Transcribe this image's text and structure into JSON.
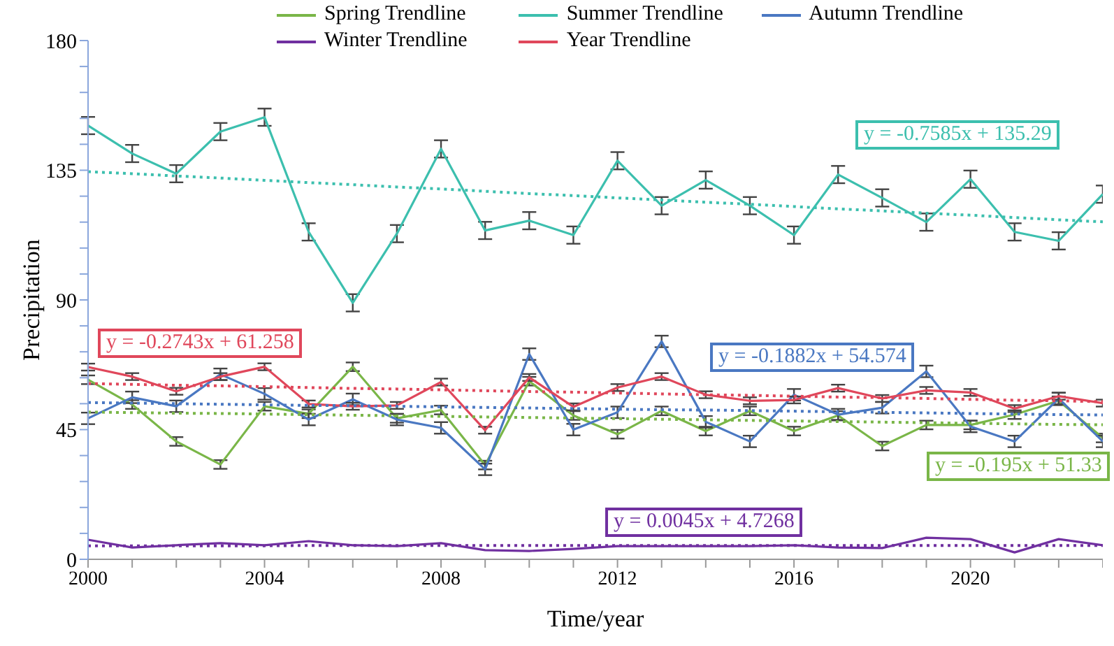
{
  "chart_data": {
    "type": "line",
    "xlabel": "Time/year",
    "ylabel": "Precipitation",
    "categories": [
      "2000",
      null,
      null,
      null,
      "2004",
      null,
      null,
      null,
      "2008",
      null,
      null,
      null,
      "2012",
      null,
      null,
      null,
      "2016",
      null,
      null,
      null,
      "2020",
      null,
      null,
      null
    ],
    "ylim": [
      0,
      180
    ],
    "yticks": [
      0,
      {
        "value": 9,
        "label": null
      },
      {
        "value": 18,
        "label": null
      },
      {
        "value": 27,
        "label": null
      },
      {
        "value": 36,
        "label": null
      },
      45,
      {
        "value": 54,
        "label": null
      },
      {
        "value": 63,
        "label": null
      },
      {
        "value": 72,
        "label": null
      },
      {
        "value": 81,
        "label": null
      },
      90,
      {
        "value": 99,
        "label": null
      },
      {
        "value": 108,
        "label": null
      },
      {
        "value": 117,
        "label": null
      },
      {
        "value": 126,
        "label": null
      },
      135,
      {
        "value": 144,
        "label": null
      },
      {
        "value": 153,
        "label": null
      },
      {
        "value": 162,
        "label": null
      },
      {
        "value": 171,
        "label": null
      },
      180
    ],
    "grid": false,
    "legend": "top",
    "marker": "none",
    "series": [
      {
        "color": "#7ab648",
        "line_style": "solid",
        "values": [
          62.3,
          53.7,
          40.9,
          32.9,
          53.1,
          50.5,
          66.8,
          48.9,
          51.8,
          32.7,
          61.8,
          49.9,
          43.4,
          51.5,
          44.5,
          51.5,
          44.5,
          49.9,
          39.3,
          46.6,
          46.6,
          50.2,
          55.0,
          42.1
        ],
        "errors": [
          1.5,
          1.5,
          1.5,
          1.5,
          1.5,
          1.5,
          1.5,
          1.5,
          1.5,
          1.5,
          1.5,
          1.5,
          1.5,
          1.5,
          1.5,
          1.5,
          1.5,
          1.5,
          1.5,
          1.5,
          1.5,
          1.5,
          1.5,
          1.5
        ]
      },
      {
        "color": "#3cbfae",
        "line_style": "solid",
        "values": [
          150.5,
          140.8,
          133.8,
          148.4,
          153.4,
          113.6,
          89.0,
          113.0,
          142.4,
          114.1,
          117.5,
          112.5,
          138.3,
          122.7,
          131.6,
          122.7,
          112.5,
          133.5,
          125.4,
          117.0,
          131.9,
          113.6,
          110.5,
          126.7
        ],
        "errors": [
          3,
          3,
          3,
          3,
          3,
          3,
          3,
          3,
          3,
          3,
          3,
          3,
          3,
          3,
          3,
          3,
          3,
          3,
          3,
          3,
          3,
          3,
          3,
          3
        ]
      },
      {
        "color": "#4a78c2",
        "line_style": "solid",
        "values": [
          48.9,
          56.2,
          53.1,
          64.2,
          57.4,
          48.5,
          55.5,
          48.5,
          45.6,
          31.2,
          71.2,
          45.0,
          51.0,
          75.6,
          47.7,
          40.9,
          57.1,
          50.2,
          52.6,
          65.2,
          46.1,
          40.9,
          55.8,
          40.9
        ],
        "errors": [
          2,
          2,
          2,
          2,
          2,
          2,
          2,
          2,
          2,
          2,
          2,
          2,
          2,
          2,
          2,
          2,
          2,
          2,
          2,
          2,
          2,
          2,
          2,
          2
        ]
      },
      {
        "color": "#7030a0",
        "line_style": "solid",
        "values": [
          6.8,
          4.1,
          4.9,
          5.6,
          4.9,
          6.3,
          4.9,
          4.6,
          5.6,
          3.2,
          2.9,
          3.6,
          4.6,
          4.6,
          4.6,
          4.6,
          4.9,
          4.1,
          3.9,
          7.5,
          7.0,
          2.4,
          7.0,
          4.9
        ]
      },
      {
        "color": "#e0475b",
        "line_style": "solid",
        "values": [
          66.7,
          63.4,
          58.3,
          63.4,
          66.8,
          53.9,
          53.1,
          53.4,
          61.5,
          44.8,
          63.1,
          52.9,
          59.6,
          63.4,
          57.1,
          55.0,
          55.3,
          59.4,
          55.8,
          58.6,
          57.9,
          52.3,
          56.6,
          54.2
        ],
        "errors": [
          1.2,
          1.2,
          1.2,
          1.2,
          1.2,
          1.2,
          1.2,
          1.2,
          1.2,
          1.2,
          1.2,
          1.2,
          1.2,
          1.2,
          1.2,
          1.2,
          1.2,
          1.2,
          1.2,
          1.2,
          1.2,
          1.2,
          1.2,
          1.2
        ]
      },
      {
        "name": "Spring Trendline",
        "color": "#7ab648",
        "line_style": "dotted",
        "values": [
          51.1,
          50.9,
          50.7,
          50.6,
          50.4,
          50.2,
          50.0,
          49.8,
          49.6,
          49.4,
          49.2,
          49.0,
          48.8,
          48.6,
          48.4,
          48.2,
          48.0,
          47.8,
          47.6,
          47.4,
          47.2,
          47.0,
          46.8,
          46.7
        ]
      },
      {
        "name": "Summer Trendline",
        "color": "#3cbfae",
        "line_style": "dotted",
        "values": [
          134.5,
          133.8,
          133.0,
          132.3,
          131.5,
          130.7,
          130.0,
          129.2,
          128.5,
          127.7,
          126.9,
          126.2,
          125.4,
          124.7,
          123.9,
          123.2,
          122.4,
          121.6,
          120.9,
          120.1,
          119.4,
          118.6,
          117.8,
          117.1
        ]
      },
      {
        "name": "Autumn Trendline",
        "color": "#4a78c2",
        "line_style": "dotted",
        "values": [
          54.4,
          54.2,
          54.0,
          53.8,
          53.6,
          53.4,
          53.3,
          53.1,
          52.9,
          52.7,
          52.5,
          52.3,
          52.1,
          51.9,
          51.8,
          51.6,
          51.4,
          51.2,
          51.0,
          50.8,
          50.6,
          50.4,
          50.2,
          50.1
        ]
      },
      {
        "name": "Winter Trendline",
        "color": "#7030a0",
        "line_style": "dotted",
        "values": [
          4.7,
          4.7,
          4.7,
          4.7,
          4.7,
          4.8,
          4.8,
          4.8,
          4.8,
          4.8,
          4.8,
          4.8,
          4.8,
          4.8,
          4.8,
          4.8,
          4.8,
          4.8,
          4.8,
          4.8,
          4.8,
          4.8,
          4.8,
          4.8
        ]
      },
      {
        "name": "Year Trendline",
        "color": "#e0475b",
        "line_style": "dotted",
        "values": [
          61.0,
          60.7,
          60.4,
          60.2,
          59.9,
          59.6,
          59.3,
          59.1,
          58.8,
          58.5,
          58.2,
          58.0,
          57.7,
          57.4,
          57.1,
          56.9,
          56.6,
          56.3,
          56.1,
          55.8,
          55.5,
          55.2,
          55.0,
          54.7
        ]
      }
    ],
    "annotations": [
      "y = -0.195x + 51.33",
      "y = -0.7585x + 135.29",
      "y = -0.1882x + 54.574",
      "y = 0.0045x + 4.7268",
      "y = -0.2743x + 61.258"
    ]
  }
}
